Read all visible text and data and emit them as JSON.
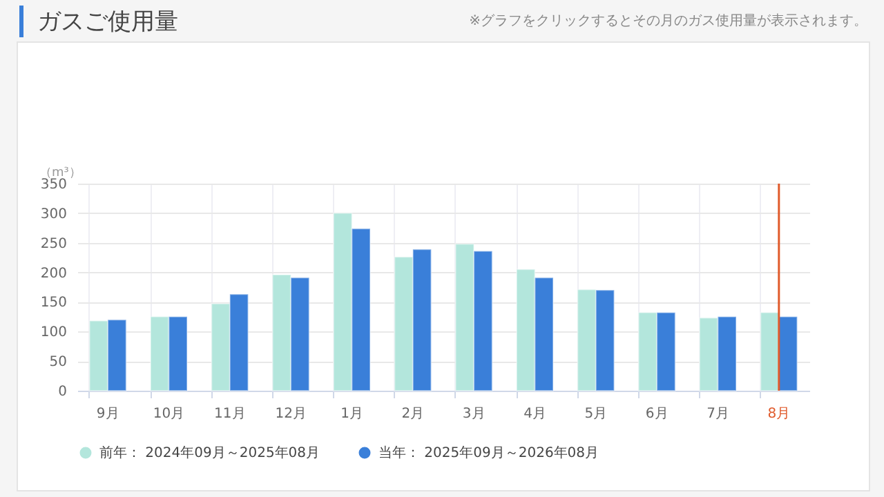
{
  "chart_data": {
    "type": "bar",
    "title": "ガスご使用量",
    "annotations": [
      "※グラフをクリックするとその月のガス使用量が表示されます。"
    ],
    "ylabel": "（m³）",
    "categories": [
      "9月",
      "10月",
      "11月",
      "12月",
      "1月",
      "2月",
      "3月",
      "4月",
      "5月",
      "6月",
      "7月",
      "8月"
    ],
    "series": [
      {
        "name": "前年： 2024年09月～2025年08月",
        "color": "#b3e6dc",
        "values": [
          118,
          125,
          147,
          196,
          300,
          226,
          248,
          205,
          171,
          132,
          123,
          132
        ]
      },
      {
        "name": "当年： 2025年09月～2026年08月",
        "color": "#3a7fd9",
        "values": [
          120,
          125,
          163,
          191,
          274,
          239,
          236,
          191,
          170,
          132,
          125,
          125
        ]
      }
    ],
    "ylim": [
      0,
      350
    ],
    "yticks": [
      0,
      50,
      100,
      150,
      200,
      250,
      300,
      350
    ],
    "grid": true,
    "legend": "bottom",
    "ref_lines": [
      {
        "axis": "x",
        "value": "8月",
        "color": "#e05a2b"
      }
    ]
  }
}
